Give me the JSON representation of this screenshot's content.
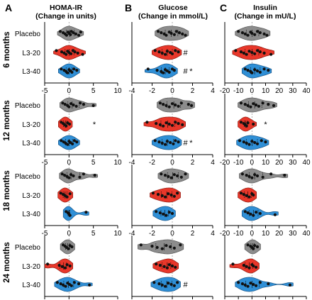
{
  "figure": {
    "panel_letters": [
      "A",
      "B",
      "C"
    ],
    "column_titles": [
      [
        "HOMA-IR",
        "(Change in units)"
      ],
      [
        "Glucose",
        "(Change in mmol/L)"
      ],
      [
        "Insulin",
        "(Change in mU/L)"
      ]
    ],
    "row_labels": [
      "6 months",
      "12 months",
      "18 months",
      "24 months"
    ],
    "groups": [
      "Placebo",
      "L3-20",
      "L3-40"
    ],
    "group_colors": [
      "#8c8c8c",
      "#e8372a",
      "#2f8fd6"
    ],
    "axis_ticks": [
      [
        "-5",
        "0",
        "5",
        "10"
      ],
      [
        "-4",
        "-2",
        "0",
        "2",
        "4"
      ],
      [
        "-20",
        "-10",
        "0",
        "10",
        "20",
        "30",
        "40"
      ]
    ],
    "marker_hash": "#",
    "marker_star": "*"
  },
  "chart_data": {
    "type": "violin",
    "columns": [
      {
        "title": "HOMA-IR",
        "subtitle": "(Change in units)",
        "xlim": [
          -5,
          10
        ],
        "ticks": [
          -5,
          0,
          5,
          10
        ],
        "rows": [
          {
            "period": "6 months",
            "groups": [
              {
                "name": "Placebo",
                "values": [
                  -1.8,
                  -1.2,
                  -0.8,
                  -0.5,
                  -0.2,
                  0.0,
                  0.3,
                  0.5,
                  0.9,
                  1.4,
                  2.0,
                  2.4
                ]
              },
              {
                "name": "L3-20",
                "values": [
                  -2.6,
                  -1.5,
                  -1.0,
                  -0.6,
                  -0.3,
                  0.0,
                  0.4,
                  0.8,
                  1.2,
                  1.8,
                  2.8
                ]
              },
              {
                "name": "L3-40",
                "values": [
                  -1.6,
                  -1.0,
                  -0.6,
                  -0.3,
                  0.0,
                  0.3,
                  0.6,
                  1.0,
                  1.6
                ]
              }
            ],
            "markers": []
          },
          {
            "period": "12 months",
            "groups": [
              {
                "name": "Placebo",
                "values": [
                  -1.3,
                  -0.8,
                  -0.3,
                  0.0,
                  0.4,
                  0.9,
                  1.5,
                  2.3,
                  3.0,
                  5.0
                ]
              },
              {
                "name": "L3-20",
                "values": [
                  -1.6,
                  -1.2,
                  -0.9,
                  -0.6,
                  -0.3,
                  0.1
                ]
              },
              {
                "name": "L3-40",
                "values": [
                  -1.6,
                  -1.1,
                  -0.7,
                  -0.3,
                  0.0,
                  0.3,
                  0.7,
                  1.1,
                  1.6
                ]
              }
            ],
            "markers": [
              {
                "group": "L3-20",
                "text": "*",
                "x": 5.2
              }
            ]
          },
          {
            "period": "18 months",
            "groups": [
              {
                "name": "Placebo",
                "values": [
                  -1.4,
                  -0.9,
                  -0.4,
                  0.0,
                  0.4,
                  0.9,
                  2.2,
                  3.0,
                  5.3
                ]
              },
              {
                "name": "L3-20",
                "values": [
                  -1.7,
                  -1.2,
                  -0.8,
                  -0.4,
                  0.2
                ]
              },
              {
                "name": "L3-40",
                "values": [
                  -0.6,
                  -0.2,
                  0.0,
                  0.2,
                  3.5
                ]
              }
            ],
            "markers": []
          },
          {
            "period": "24 months",
            "groups": [
              {
                "name": "Placebo",
                "values": [
                  -1.2,
                  -0.8,
                  -0.5,
                  -0.1,
                  0.2,
                  0.6
                ]
              },
              {
                "name": "L3-20",
                "values": [
                  -4.4,
                  -2.0,
                  -1.4,
                  -0.8,
                  -0.4,
                  0.2
                ]
              },
              {
                "name": "L3-40",
                "values": [
                  -2.4,
                  -1.7,
                  -1.2,
                  -0.7,
                  -0.3,
                  0.1,
                  0.5,
                  1.1,
                  2.0,
                  4.2
                ]
              }
            ],
            "markers": []
          }
        ]
      },
      {
        "title": "Glucose",
        "subtitle": "(Change in mmol/L)",
        "xlim": [
          -4,
          4
        ],
        "ticks": [
          -4,
          -2,
          0,
          2,
          4
        ],
        "rows": [
          {
            "period": "6 months",
            "groups": [
              {
                "name": "Placebo",
                "values": [
                  -1.4,
                  -1.1,
                  -0.8,
                  -0.6,
                  -0.3,
                  -0.1,
                  0.2,
                  0.4,
                  0.7,
                  1.0,
                  1.3
                ]
              },
              {
                "name": "L3-20",
                "values": [
                  -1.7,
                  -1.3,
                  -1.0,
                  -0.7,
                  -0.5,
                  -0.2,
                  0.0,
                  0.3,
                  0.6
                ]
              },
              {
                "name": "L3-40",
                "values": [
                  -2.4,
                  -1.5,
                  -1.1,
                  -0.9,
                  -0.7,
                  -0.5,
                  -0.3,
                  0.0,
                  0.2
                ]
              }
            ],
            "markers": [
              {
                "group": "L3-20",
                "text": "#",
                "x": 1.3
              },
              {
                "group": "L3-40",
                "text": "#",
                "x": 1.3
              },
              {
                "group": "L3-40",
                "text": "*",
                "x": 1.85
              }
            ]
          },
          {
            "period": "12 months",
            "groups": [
              {
                "name": "Placebo",
                "values": [
                  -1.2,
                  -0.9,
                  -0.6,
                  -0.3,
                  0.0,
                  0.3,
                  0.6,
                  0.9,
                  1.6,
                  1.9
                ]
              },
              {
                "name": "L3-20",
                "values": [
                  -2.5,
                  -1.6,
                  -1.2,
                  -0.9,
                  -0.6,
                  -0.3,
                  0.0,
                  0.3,
                  0.6,
                  1.0
                ]
              },
              {
                "name": "L3-40",
                "values": [
                  -1.7,
                  -1.3,
                  -1.0,
                  -0.7,
                  -0.5,
                  -0.2,
                  0.1,
                  0.3,
                  0.6
                ]
              }
            ],
            "markers": [
              {
                "group": "L3-40",
                "text": "#",
                "x": 1.3
              },
              {
                "group": "L3-40",
                "text": "*",
                "x": 1.85
              }
            ]
          },
          {
            "period": "18 months",
            "groups": [
              {
                "name": "Placebo",
                "values": [
                  -1.1,
                  -0.7,
                  -0.4,
                  -0.1,
                  0.2,
                  0.5,
                  0.9,
                  1.3
                ]
              },
              {
                "name": "L3-20",
                "values": [
                  -1.9,
                  -1.4,
                  -1.0,
                  -0.7,
                  -0.4,
                  -0.1,
                  0.2,
                  0.5
                ]
              },
              {
                "name": "L3-40",
                "values": [
                  -1.6,
                  -1.2,
                  -0.9,
                  -0.6,
                  -0.3,
                  0.0
                ]
              }
            ],
            "markers": []
          },
          {
            "period": "24 months",
            "groups": [
              {
                "name": "Placebo",
                "values": [
                  -3.1,
                  -2.0,
                  -1.5,
                  -1.0,
                  -0.6,
                  -0.2,
                  0.2,
                  0.8
                ]
              },
              {
                "name": "L3-20",
                "values": [
                  -1.6,
                  -1.2,
                  -0.8,
                  -0.5,
                  -0.3,
                  0.0,
                  0.3
                ]
              },
              {
                "name": "L3-40",
                "values": [
                  -1.8,
                  -1.3,
                  -1.0,
                  -0.7,
                  -0.4,
                  -0.1,
                  0.2,
                  0.5
                ]
              }
            ],
            "markers": [
              {
                "group": "L3-40",
                "text": "#",
                "x": 1.3
              }
            ]
          }
        ]
      },
      {
        "title": "Insulin",
        "subtitle": "(Change in mU/L)",
        "xlim": [
          -20,
          40
        ],
        "ticks": [
          -20,
          -10,
          0,
          10,
          20,
          30,
          40
        ],
        "rows": [
          {
            "period": "6 months",
            "groups": [
              {
                "name": "Placebo",
                "values": [
                  -10,
                  -7,
                  -5,
                  -3,
                  -1,
                  0,
                  2,
                  4,
                  6,
                  9,
                  11
                ]
              },
              {
                "name": "L3-20",
                "values": [
                  -12,
                  -8,
                  -6,
                  -4,
                  -2,
                  0,
                  2,
                  4,
                  6,
                  9,
                  14
                ]
              },
              {
                "name": "L3-40",
                "values": [
                  -5,
                  -3,
                  -1,
                  0,
                  2,
                  4,
                  6,
                  9,
                  12
                ]
              }
            ],
            "markers": []
          },
          {
            "period": "12 months",
            "groups": [
              {
                "name": "Placebo",
                "values": [
                  -8,
                  -5,
                  -3,
                  -1,
                  1,
                  3,
                  5,
                  8,
                  12,
                  16
                ]
              },
              {
                "name": "L3-20",
                "values": [
                  -8,
                  -6,
                  -5,
                  -4,
                  -3,
                  1
                ]
              },
              {
                "name": "L3-40",
                "values": [
                  -9,
                  -6,
                  -4,
                  -2,
                  0,
                  2,
                  4,
                  7,
                  10
                ]
              }
            ],
            "markers": [
              {
                "group": "L3-20",
                "text": "*",
                "x": 10
              }
            ]
          },
          {
            "period": "18 months",
            "groups": [
              {
                "name": "Placebo",
                "values": [
                  -7,
                  -4,
                  -2,
                  0,
                  2,
                  4,
                  8,
                  14,
                  24
                ]
              },
              {
                "name": "L3-20",
                "values": [
                  -8,
                  -6,
                  -4,
                  -2,
                  0,
                  1
                ]
              },
              {
                "name": "L3-40",
                "values": [
                  -5,
                  -3,
                  -1,
                  1,
                  3,
                  6,
                  17
                ]
              }
            ],
            "markers": []
          },
          {
            "period": "24 months",
            "groups": [
              {
                "name": "Placebo",
                "values": [
                  -3,
                  -1,
                  0,
                  1,
                  2,
                  4
                ]
              },
              {
                "name": "L3-20",
                "values": [
                  -14,
                  -6,
                  -4,
                  -2,
                  0,
                  1,
                  3
                ]
              },
              {
                "name": "L3-40",
                "values": [
                  -10,
                  -7,
                  -5,
                  -3,
                  -1,
                  1,
                  3,
                  6,
                  12,
                  28
                ]
              }
            ],
            "markers": []
          }
        ]
      }
    ]
  }
}
